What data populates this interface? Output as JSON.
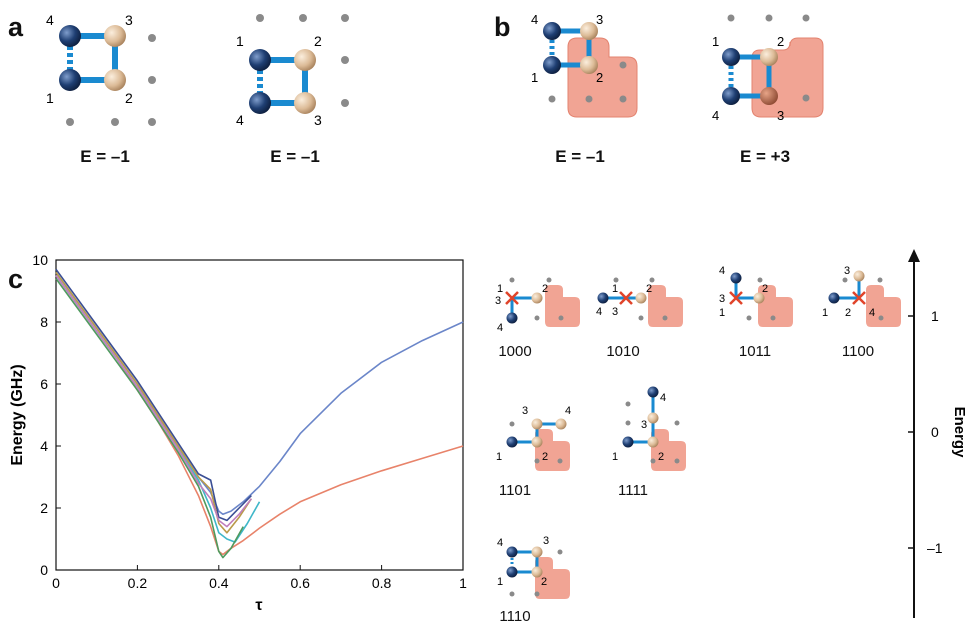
{
  "panels": {
    "a": "a",
    "b": "b",
    "c": "c"
  },
  "energies": {
    "a1": "E = –1",
    "a2": "E = –1",
    "b1": "E = –1",
    "b2": "E = +3"
  },
  "node_labels": {
    "one": "1",
    "two": "2",
    "three": "3",
    "four": "4"
  },
  "codes": [
    "1000",
    "1010",
    "1011",
    "1100",
    "1101",
    "1111",
    "1110"
  ],
  "energy_axis": {
    "label": "Energy",
    "ticks": [
      "1",
      "0",
      "–1"
    ]
  },
  "colors": {
    "blue_node": "#1f3f73",
    "tan_node": "#e3c7a6",
    "bond": "#1a8ad0",
    "region": "#f1a494",
    "dot": "#8a8a8a",
    "cross": "#e0442a"
  },
  "chart_data": {
    "type": "line",
    "xlabel": "τ",
    "ylabel": "Energy (GHz)",
    "xlim": [
      0,
      1
    ],
    "ylim": [
      0,
      10
    ],
    "xticks": [
      "0",
      "0.2",
      "0.4",
      "0.6",
      "0.8",
      "1"
    ],
    "yticks": [
      "0",
      "2",
      "4",
      "6",
      "8",
      "10"
    ],
    "series": [
      {
        "color": "#6b86c9",
        "x": [
          0,
          0.05,
          0.1,
          0.15,
          0.2,
          0.25,
          0.3,
          0.35,
          0.38,
          0.4,
          0.41,
          0.43,
          0.46,
          0.5,
          0.55,
          0.6,
          0.7,
          0.8,
          0.9,
          1.0
        ],
        "y": [
          9.6,
          8.7,
          7.8,
          6.9,
          6.0,
          5.0,
          4.0,
          3.0,
          2.5,
          1.9,
          1.8,
          1.9,
          2.2,
          2.7,
          3.5,
          4.4,
          5.7,
          6.7,
          7.4,
          8.0
        ]
      },
      {
        "color": "#e8836a",
        "x": [
          0,
          0.05,
          0.1,
          0.15,
          0.2,
          0.25,
          0.3,
          0.35,
          0.38,
          0.4,
          0.41,
          0.43,
          0.46,
          0.5,
          0.55,
          0.6,
          0.7,
          0.8,
          0.9,
          1.0
        ],
        "y": [
          9.5,
          8.6,
          7.7,
          6.8,
          5.8,
          4.8,
          3.7,
          2.4,
          1.4,
          0.6,
          0.5,
          0.7,
          0.95,
          1.35,
          1.8,
          2.2,
          2.75,
          3.2,
          3.6,
          4.0
        ]
      },
      {
        "color": "#3a4e94",
        "x": [
          0,
          0.05,
          0.1,
          0.15,
          0.2,
          0.25,
          0.3,
          0.35,
          0.38,
          0.4,
          0.42,
          0.45,
          0.48
        ],
        "y": [
          9.7,
          8.8,
          7.9,
          7.0,
          6.1,
          5.1,
          4.1,
          3.1,
          2.9,
          1.7,
          1.6,
          2.0,
          2.4
        ]
      },
      {
        "color": "#b99a4a",
        "x": [
          0,
          0.05,
          0.1,
          0.15,
          0.2,
          0.25,
          0.3,
          0.35,
          0.38,
          0.4,
          0.42,
          0.45,
          0.48
        ],
        "y": [
          9.6,
          8.7,
          7.8,
          6.9,
          6.0,
          5.0,
          4.0,
          3.0,
          2.6,
          1.5,
          1.2,
          1.7,
          2.3
        ]
      },
      {
        "color": "#3fb7c9",
        "x": [
          0,
          0.05,
          0.1,
          0.15,
          0.2,
          0.25,
          0.3,
          0.35,
          0.38,
          0.4,
          0.42,
          0.44,
          0.47,
          0.5
        ],
        "y": [
          9.5,
          8.6,
          7.7,
          6.8,
          5.9,
          4.9,
          3.9,
          2.9,
          2.0,
          1.2,
          1.0,
          0.9,
          1.5,
          2.2
        ]
      },
      {
        "color": "#4f9a5e",
        "x": [
          0,
          0.05,
          0.1,
          0.15,
          0.2,
          0.25,
          0.3,
          0.35,
          0.38,
          0.4,
          0.41,
          0.43,
          0.46
        ],
        "y": [
          9.4,
          8.5,
          7.6,
          6.7,
          5.8,
          4.8,
          3.8,
          2.7,
          1.7,
          0.6,
          0.4,
          0.7,
          1.4
        ]
      },
      {
        "color": "#c07fbd",
        "x": [
          0,
          0.05,
          0.1,
          0.15,
          0.2,
          0.25,
          0.3,
          0.35,
          0.38,
          0.4,
          0.42,
          0.45,
          0.48
        ],
        "y": [
          9.5,
          8.6,
          7.7,
          6.8,
          5.9,
          4.9,
          3.9,
          2.8,
          2.3,
          1.6,
          1.4,
          1.8,
          2.3
        ]
      }
    ]
  }
}
